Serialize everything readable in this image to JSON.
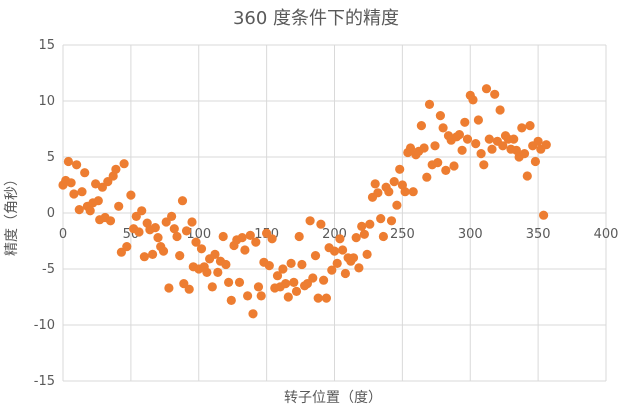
{
  "chart_data": {
    "type": "scatter",
    "title": "360 度条件下的精度",
    "xlabel": "转子位置（度）",
    "ylabel": "精度（角秒）",
    "xlim": [
      0,
      400
    ],
    "ylim": [
      -15,
      15
    ],
    "x_ticks": [
      "0",
      "50",
      "100",
      "150",
      "200",
      "250",
      "300",
      "350",
      "400"
    ],
    "y_ticks": [
      "15",
      "10",
      "5",
      "0",
      "-5",
      "-10",
      "-15"
    ],
    "grid": true,
    "legend": "none",
    "marker_color": "#ed7d31",
    "series": [
      {
        "points": [
          [
            0,
            2.5
          ],
          [
            2,
            2.9
          ],
          [
            4,
            4.6
          ],
          [
            6,
            2.7
          ],
          [
            8,
            1.7
          ],
          [
            10,
            4.3
          ],
          [
            12,
            0.3
          ],
          [
            14,
            1.9
          ],
          [
            16,
            3.6
          ],
          [
            18,
            0.6
          ],
          [
            20,
            0.2
          ],
          [
            22,
            0.9
          ],
          [
            24,
            2.6
          ],
          [
            26,
            1.1
          ],
          [
            27,
            -0.6
          ],
          [
            29,
            2.3
          ],
          [
            31,
            -0.4
          ],
          [
            33,
            2.8
          ],
          [
            35,
            -0.7
          ],
          [
            37,
            3.3
          ],
          [
            39,
            3.9
          ],
          [
            41,
            0.6
          ],
          [
            43,
            -3.5
          ],
          [
            45,
            4.4
          ],
          [
            47,
            -3.0
          ],
          [
            50,
            1.6
          ],
          [
            52,
            -1.4
          ],
          [
            54,
            -0.3
          ],
          [
            56,
            -1.7
          ],
          [
            58,
            0.2
          ],
          [
            60,
            -3.9
          ],
          [
            62,
            -0.9
          ],
          [
            64,
            -1.5
          ],
          [
            66,
            -3.7
          ],
          [
            68,
            -1.3
          ],
          [
            70,
            -2.2
          ],
          [
            72,
            -3.0
          ],
          [
            74,
            -3.4
          ],
          [
            76,
            -0.8
          ],
          [
            78,
            -6.7
          ],
          [
            80,
            -0.3
          ],
          [
            82,
            -1.4
          ],
          [
            84,
            -2.1
          ],
          [
            86,
            -3.8
          ],
          [
            88,
            1.1
          ],
          [
            89,
            -6.3
          ],
          [
            91,
            -1.6
          ],
          [
            93,
            -6.8
          ],
          [
            95,
            -0.8
          ],
          [
            96,
            -4.8
          ],
          [
            98,
            -2.6
          ],
          [
            100,
            -5.0
          ],
          [
            102,
            -3.2
          ],
          [
            104,
            -4.8
          ],
          [
            106,
            -5.3
          ],
          [
            108,
            -4.1
          ],
          [
            110,
            -6.6
          ],
          [
            112,
            -3.7
          ],
          [
            114,
            -5.3
          ],
          [
            116,
            -4.3
          ],
          [
            118,
            -2.1
          ],
          [
            120,
            -4.6
          ],
          [
            122,
            -6.2
          ],
          [
            124,
            -7.8
          ],
          [
            126,
            -2.9
          ],
          [
            128,
            -2.4
          ],
          [
            130,
            -6.2
          ],
          [
            132,
            -2.2
          ],
          [
            134,
            -3.3
          ],
          [
            136,
            -7.4
          ],
          [
            138,
            -2.0
          ],
          [
            140,
            -9.0
          ],
          [
            142,
            -2.6
          ],
          [
            144,
            -6.6
          ],
          [
            146,
            -7.4
          ],
          [
            148,
            -4.4
          ],
          [
            150,
            -1.8
          ],
          [
            152,
            -4.7
          ],
          [
            154,
            -2.3
          ],
          [
            156,
            -6.7
          ],
          [
            158,
            -5.6
          ],
          [
            160,
            -6.6
          ],
          [
            162,
            -5.0
          ],
          [
            164,
            -6.3
          ],
          [
            166,
            -7.5
          ],
          [
            168,
            -4.5
          ],
          [
            170,
            -6.2
          ],
          [
            172,
            -7.0
          ],
          [
            174,
            -2.1
          ],
          [
            176,
            -4.6
          ],
          [
            178,
            -6.5
          ],
          [
            180,
            -6.3
          ],
          [
            182,
            -0.7
          ],
          [
            184,
            -5.8
          ],
          [
            186,
            -3.8
          ],
          [
            188,
            -7.6
          ],
          [
            190,
            -1.0
          ],
          [
            192,
            -6.0
          ],
          [
            194,
            -7.6
          ],
          [
            196,
            -3.1
          ],
          [
            198,
            -5.1
          ],
          [
            200,
            -3.4
          ],
          [
            202,
            -4.5
          ],
          [
            204,
            -2.3
          ],
          [
            206,
            -3.3
          ],
          [
            208,
            -5.4
          ],
          [
            210,
            -4.0
          ],
          [
            212,
            -4.3
          ],
          [
            214,
            -4.0
          ],
          [
            216,
            -2.2
          ],
          [
            218,
            -4.9
          ],
          [
            220,
            -1.2
          ],
          [
            222,
            -1.9
          ],
          [
            224,
            -3.7
          ],
          [
            226,
            -1.0
          ],
          [
            228,
            1.4
          ],
          [
            230,
            2.6
          ],
          [
            232,
            1.8
          ],
          [
            234,
            -0.5
          ],
          [
            236,
            -2.1
          ],
          [
            238,
            2.3
          ],
          [
            240,
            1.9
          ],
          [
            242,
            -0.7
          ],
          [
            244,
            2.8
          ],
          [
            246,
            0.7
          ],
          [
            248,
            3.9
          ],
          [
            250,
            2.5
          ],
          [
            252,
            1.9
          ],
          [
            254,
            5.4
          ],
          [
            256,
            5.8
          ],
          [
            258,
            1.9
          ],
          [
            260,
            5.2
          ],
          [
            262,
            5.5
          ],
          [
            264,
            7.8
          ],
          [
            266,
            5.8
          ],
          [
            268,
            3.2
          ],
          [
            270,
            9.7
          ],
          [
            272,
            4.3
          ],
          [
            274,
            6.0
          ],
          [
            276,
            4.5
          ],
          [
            278,
            8.7
          ],
          [
            280,
            7.6
          ],
          [
            282,
            3.8
          ],
          [
            284,
            6.9
          ],
          [
            286,
            6.5
          ],
          [
            288,
            4.2
          ],
          [
            290,
            6.8
          ],
          [
            292,
            7.0
          ],
          [
            294,
            5.6
          ],
          [
            296,
            8.1
          ],
          [
            298,
            6.6
          ],
          [
            300,
            10.5
          ],
          [
            302,
            10.1
          ],
          [
            304,
            6.2
          ],
          [
            306,
            8.3
          ],
          [
            308,
            5.3
          ],
          [
            310,
            4.3
          ],
          [
            312,
            11.1
          ],
          [
            314,
            6.6
          ],
          [
            316,
            5.7
          ],
          [
            318,
            10.6
          ],
          [
            320,
            6.4
          ],
          [
            322,
            9.2
          ],
          [
            324,
            6.0
          ],
          [
            326,
            6.9
          ],
          [
            328,
            6.6
          ],
          [
            330,
            5.7
          ],
          [
            332,
            6.6
          ],
          [
            334,
            5.6
          ],
          [
            336,
            5.0
          ],
          [
            338,
            7.6
          ],
          [
            340,
            5.3
          ],
          [
            342,
            3.3
          ],
          [
            344,
            7.8
          ],
          [
            346,
            6.0
          ],
          [
            348,
            4.6
          ],
          [
            350,
            6.4
          ],
          [
            352,
            5.7
          ],
          [
            354,
            -0.2
          ],
          [
            356,
            6.1
          ]
        ]
      }
    ]
  }
}
